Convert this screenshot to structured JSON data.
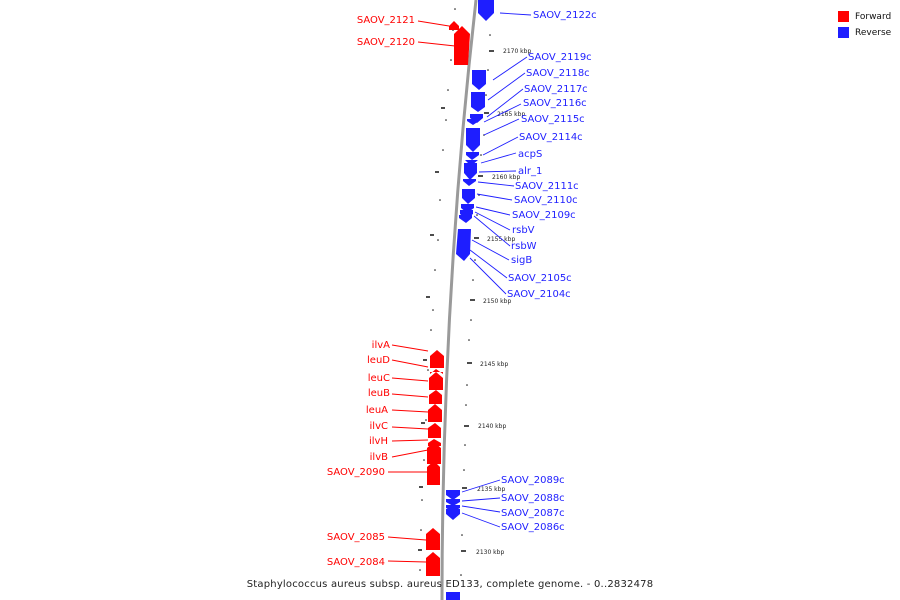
{
  "colors": {
    "forward": "#ff0000",
    "reverse": "#1e1eff",
    "backbone": "#9a9a9a",
    "tick": "#111111"
  },
  "legend": [
    {
      "label": "Forward",
      "color": "#ff0000"
    },
    {
      "label": "Reverse",
      "color": "#1e1eff"
    }
  ],
  "caption": "Staphylococcus aureus subsp. aureus ED133, complete genome. - 0..2832478",
  "scale_labels": [
    "2170 kbp",
    "2165 kbp",
    "2160 kbp",
    "2155 kbp",
    "2150 kbp",
    "2145 kbp",
    "2140 kbp",
    "2135 kbp",
    "2130 kbp"
  ],
  "genes_forward": [
    "SAOV_2121",
    "SAOV_2120",
    "ilvA",
    "leuD",
    "leuC",
    "leuB",
    "leuA",
    "ilvC",
    "ilvH",
    "ilvB",
    "SAOV_2090",
    "SAOV_2085",
    "SAOV_2084"
  ],
  "genes_reverse": [
    "SAOV_2122c",
    "SAOV_2119c",
    "SAOV_2118c",
    "SAOV_2117c",
    "SAOV_2116c",
    "SAOV_2115c",
    "SAOV_2114c",
    "acpS",
    "alr_1",
    "SAOV_2111c",
    "SAOV_2110c",
    "SAOV_2109c",
    "rsbV",
    "rsbW",
    "sigB",
    "SAOV_2105c",
    "SAOV_2104c",
    "SAOV_2089c",
    "SAOV_2088c",
    "SAOV_2087c",
    "SAOV_2086c"
  ]
}
